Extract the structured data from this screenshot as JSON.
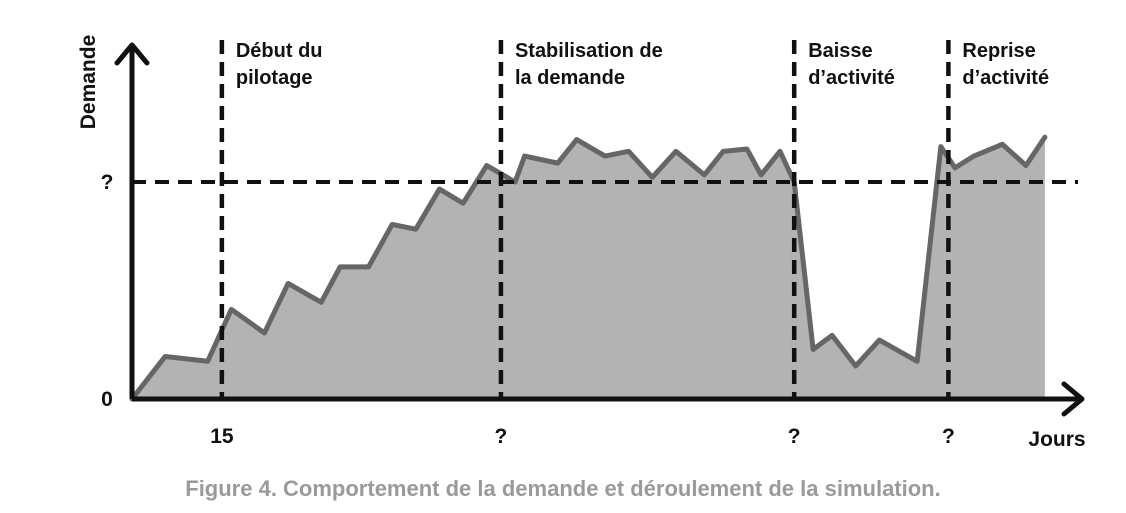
{
  "chart_data": {
    "type": "area",
    "title": "",
    "xlabel": "Jours",
    "ylabel": "Demande",
    "y_tick_labels": [
      "0",
      "?"
    ],
    "x_tick_labels": [
      "15",
      "?",
      "?",
      "?"
    ],
    "x_range": [
      0,
      100
    ],
    "y_range": [
      0,
      1
    ],
    "reference_level": 0.92,
    "phase_x": [
      9.5,
      39.0,
      70.0,
      86.3
    ],
    "phases": [
      [
        "Début du",
        "pilotage"
      ],
      [
        "Stabilisation de",
        "la demande"
      ],
      [
        "Baisse",
        "d’activité"
      ],
      [
        "Reprise",
        "d’activité"
      ]
    ],
    "series": [
      {
        "x": [
          0,
          3.5,
          8,
          10.5,
          14,
          16.5,
          20,
          22,
          25,
          27.5,
          30,
          32.5,
          35,
          37.5,
          40.5,
          41.5,
          45,
          47,
          50,
          52.5,
          55,
          57.5,
          60.5,
          62.5,
          65,
          66.5,
          68.5,
          70,
          72,
          74,
          76.5,
          79,
          83,
          85.5,
          87,
          89,
          92,
          94.5,
          96.5
        ],
        "y": [
          0.0,
          0.18,
          0.16,
          0.38,
          0.28,
          0.49,
          0.41,
          0.56,
          0.56,
          0.74,
          0.72,
          0.89,
          0.83,
          0.99,
          0.92,
          1.03,
          1.0,
          1.1,
          1.03,
          1.05,
          0.94,
          1.05,
          0.95,
          1.05,
          1.06,
          0.95,
          1.05,
          0.92,
          0.21,
          0.27,
          0.14,
          0.25,
          0.16,
          1.07,
          0.98,
          1.03,
          1.08,
          0.99,
          1.11
        ]
      }
    ],
    "colors": {
      "fill": "#b3b3b3",
      "line": "#666666",
      "axes": "#111111",
      "caption": "#9a9a9a"
    },
    "grid": false,
    "legend": "none"
  },
  "caption": "Figure 4. Comportement de la demande et déroulement de la simulation."
}
